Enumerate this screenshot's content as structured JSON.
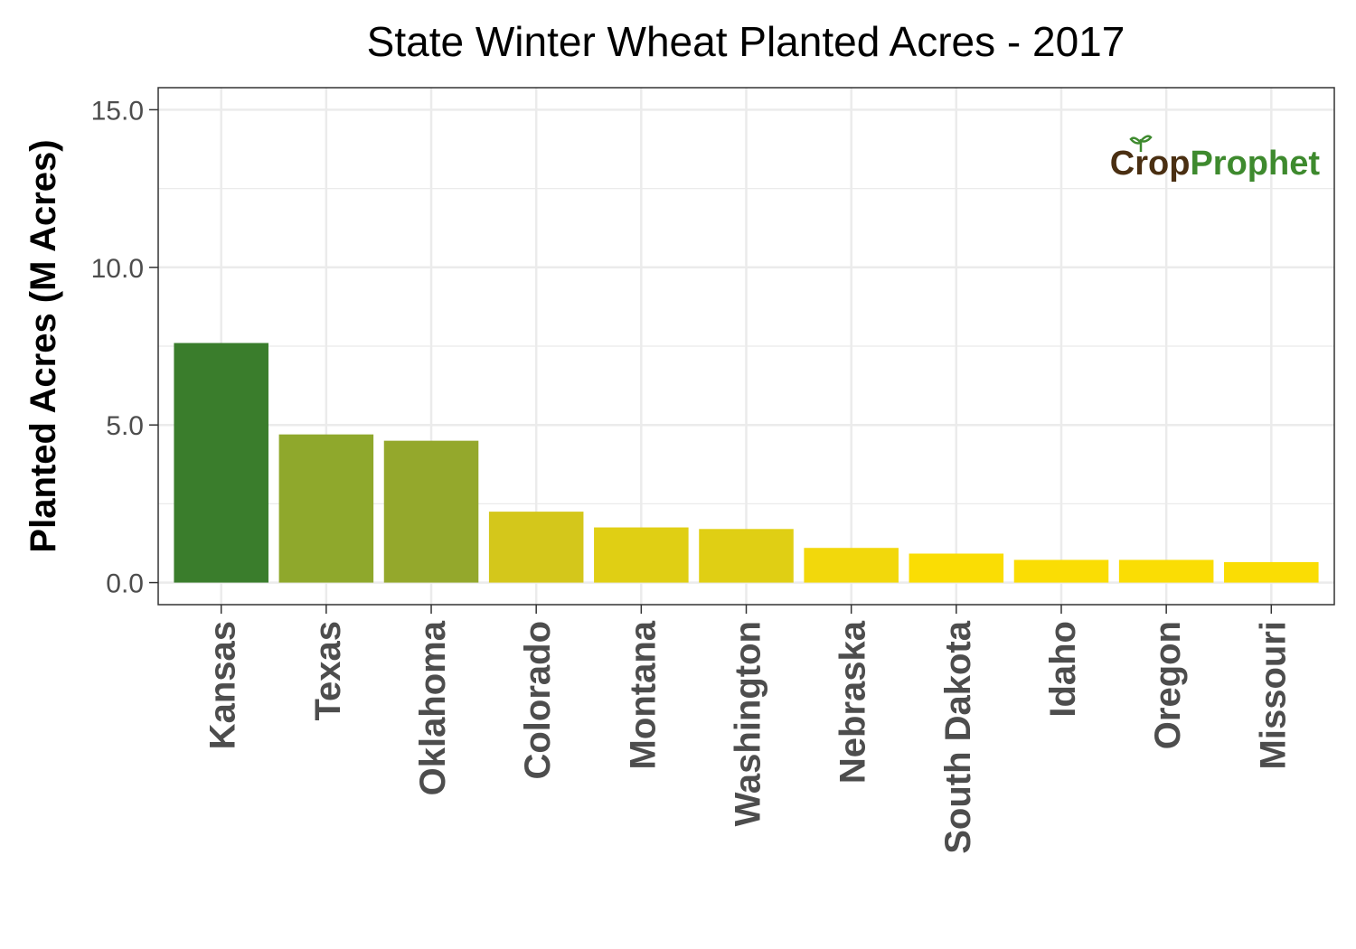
{
  "chart_data": {
    "type": "bar",
    "title": "State Winter Wheat Planted Acres - 2017",
    "xlabel": "",
    "ylabel": "Planted Acres (M Acres)",
    "ylim": [
      -0.7,
      15.7
    ],
    "yticks": [
      0.0,
      5.0,
      10.0,
      15.0
    ],
    "ytick_labels": [
      "0.0",
      "5.0",
      "10.0",
      "15.0"
    ],
    "grid": true,
    "legend": "none",
    "categories": [
      "Kansas",
      "Texas",
      "Oklahoma",
      "Colorado",
      "Montana",
      "Washington",
      "Nebraska",
      "South Dakota",
      "Idaho",
      "Oregon",
      "Missouri"
    ],
    "values": [
      7.6,
      4.7,
      4.5,
      2.25,
      1.75,
      1.7,
      1.1,
      0.92,
      0.72,
      0.72,
      0.65
    ],
    "bar_colors": [
      "#3a7d2c",
      "#8fa82c",
      "#94a82c",
      "#d4c71b",
      "#e0cf14",
      "#e0cf14",
      "#f2d80c",
      "#fadd04",
      "#fadd04",
      "#fadd04",
      "#fadd04"
    ],
    "logo": {
      "text_part1": "Crop",
      "text_part2": "Prophet",
      "color_part1": "#4a2f12",
      "color_part2": "#3e8a2e"
    }
  }
}
